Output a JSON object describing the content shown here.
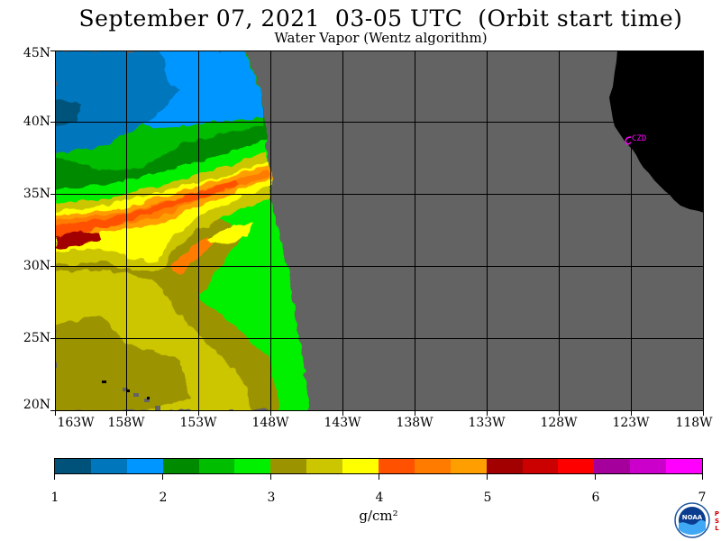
{
  "title": "September 07, 2021  03-05 UTC  (Orbit start time)",
  "subtitle": "Water Vapor (Wentz algorithm)",
  "map": {
    "lat_labels": [
      "45N",
      "40N",
      "35N",
      "30N",
      "25N",
      "20N"
    ],
    "lon_labels": [
      "163W",
      "158W",
      "153W",
      "148W",
      "143W",
      "138W",
      "133W",
      "128W",
      "123W",
      "118W"
    ],
    "station_label": "CZD",
    "colors": {
      "no_data": "#636363",
      "land": "#000000",
      "grid": "#000000",
      "station": "#ff00ff"
    }
  },
  "colorbar": {
    "colors": [
      "#00527a",
      "#0076bd",
      "#0096ff",
      "#008a00",
      "#00bd00",
      "#00f000",
      "#9c9300",
      "#cbc600",
      "#ffff00",
      "#ff5100",
      "#ff7b00",
      "#ff9e00",
      "#a20000",
      "#cb0000",
      "#ff0000",
      "#a5009c",
      "#cb00cb",
      "#ff00ff"
    ],
    "tick_labels": [
      "1",
      "2",
      "3",
      "4",
      "5",
      "6",
      "7"
    ],
    "units": "g/cm²"
  },
  "logo": {
    "text": "NOAA",
    "side_text": "PSL"
  }
}
